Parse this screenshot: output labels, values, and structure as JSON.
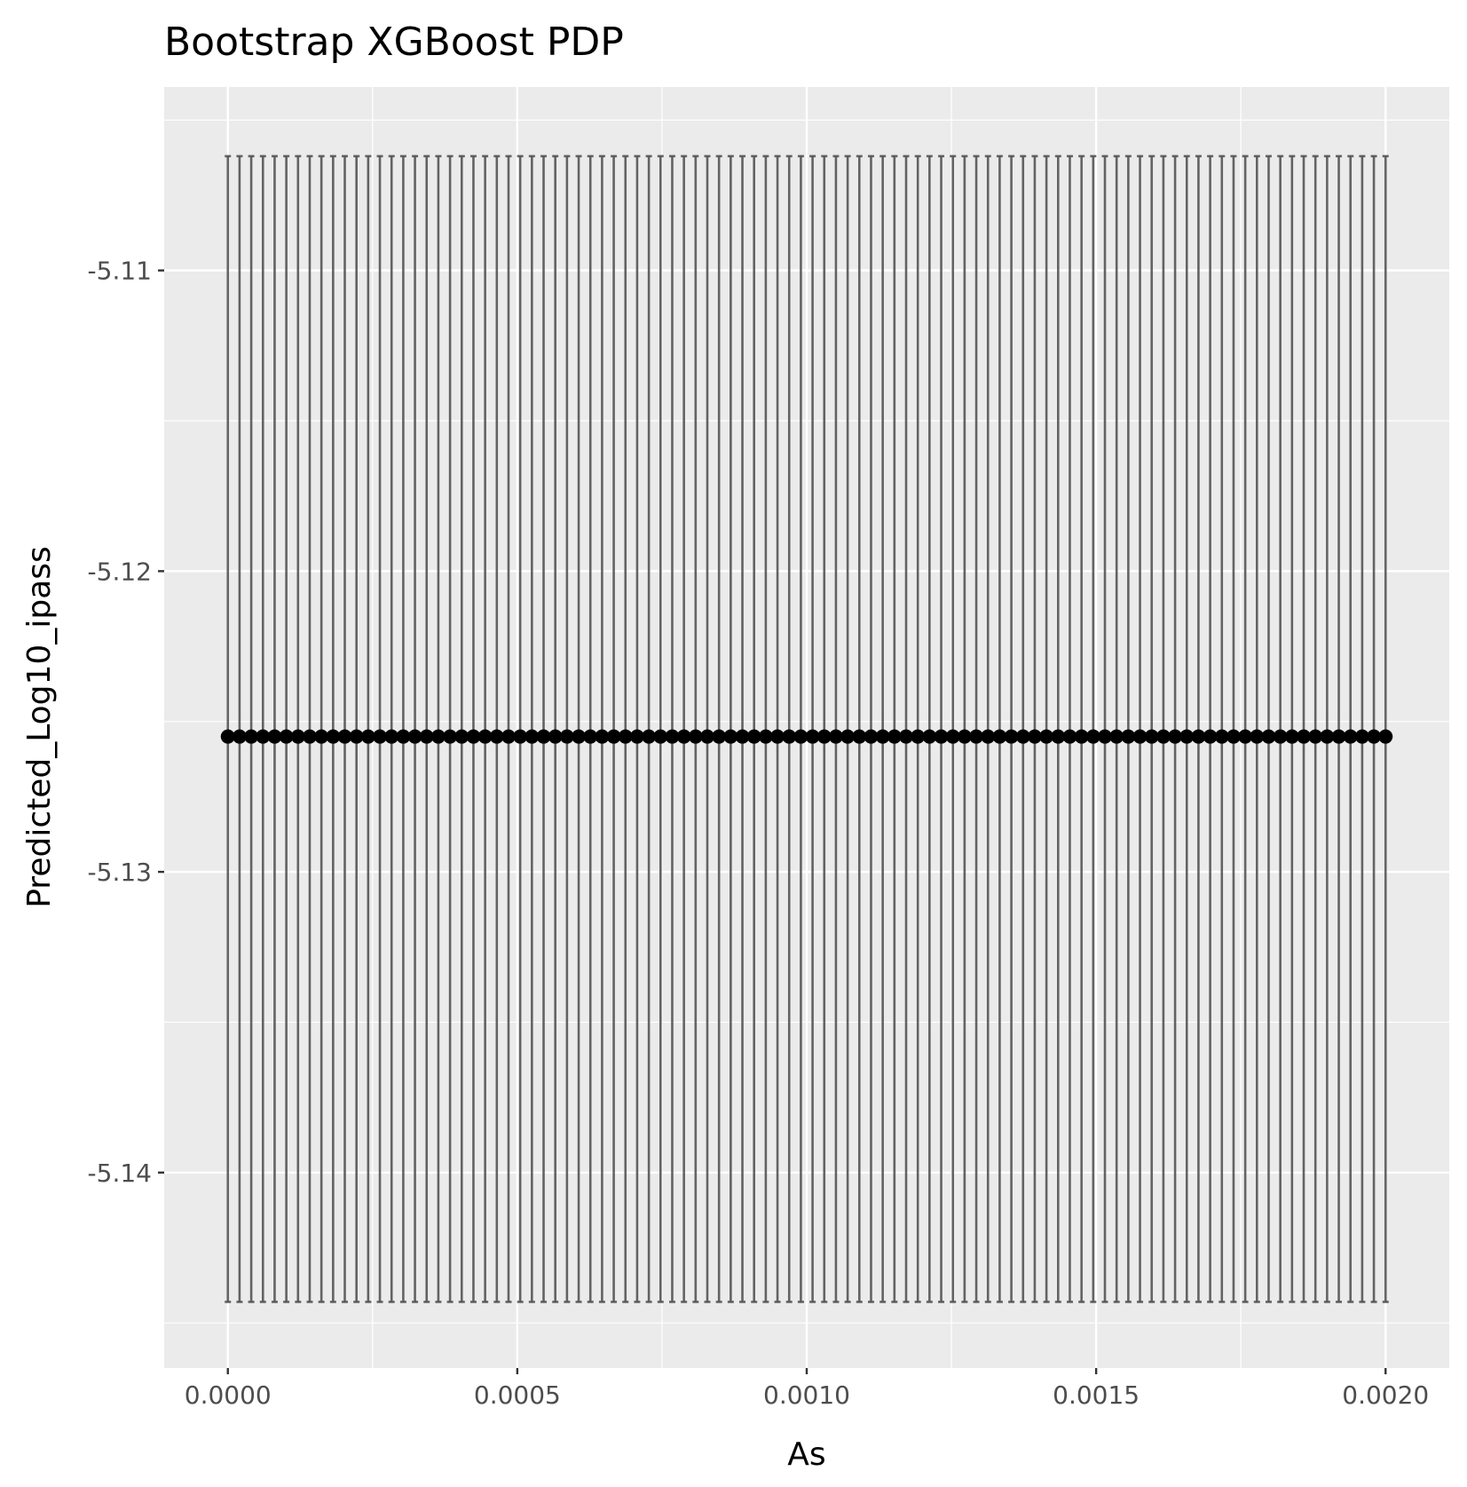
{
  "chart_data": {
    "type": "scatter",
    "title": "Bootstrap XGBoost PDP",
    "xlabel": "As",
    "ylabel": "Predicted_Log10_ipass",
    "xlim": [
      -0.00011,
      0.00211
    ],
    "ylim": [
      -5.1465,
      -5.1039
    ],
    "x_ticks": [
      0.0,
      0.0005,
      0.001,
      0.0015,
      0.002
    ],
    "x_tick_labels": [
      "0.0000",
      "0.0005",
      "0.0010",
      "0.0015",
      "0.0020"
    ],
    "y_ticks": [
      -5.11,
      -5.12,
      -5.13,
      -5.14
    ],
    "y_tick_labels": [
      "-5.11",
      "-5.12",
      "-5.13",
      "-5.14"
    ],
    "grid": true,
    "legend": "none",
    "colors": {
      "panel": "#ebebeb",
      "grid": "#ffffff",
      "point": "#000000",
      "errorbar": "#555555",
      "tick_label": "#4d4d4d",
      "tick_mark": "#333333"
    },
    "series": [
      {
        "x_start": 0.0,
        "x_end": 0.002,
        "n_points": 100,
        "y": -5.1255,
        "y_lower": -5.1443,
        "y_upper": -5.1062
      }
    ]
  }
}
